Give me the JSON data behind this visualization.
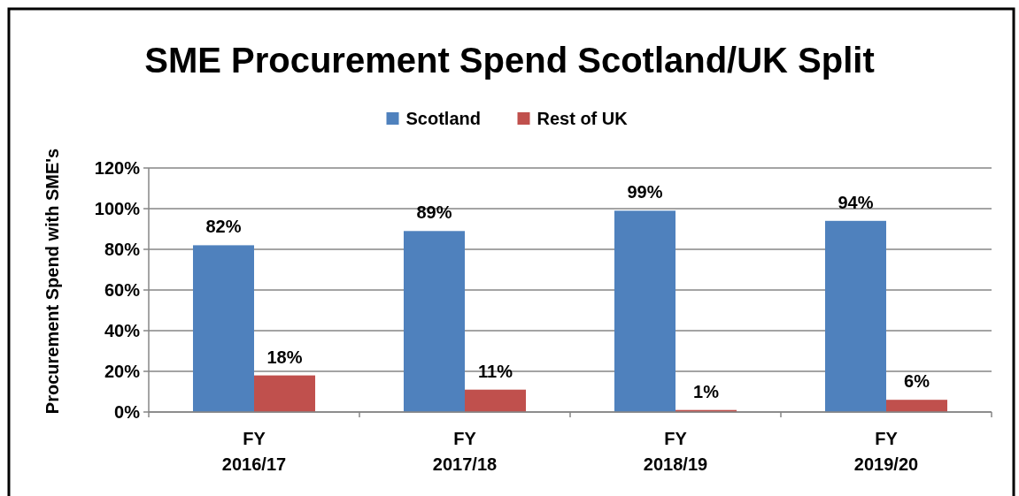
{
  "chart_data": {
    "type": "bar",
    "title": "SME Procurement Spend Scotland/UK Split",
    "ylabel": "Procurement Spend with SME's",
    "categories": [
      "FY 2016/17",
      "FY 2017/18",
      "FY 2018/19",
      "FY 2019/20"
    ],
    "series": [
      {
        "name": "Scotland",
        "color": "#4f81bd",
        "values": [
          82,
          89,
          99,
          94
        ],
        "value_labels": [
          "82%",
          "89%",
          "99%",
          "94%"
        ]
      },
      {
        "name": "Rest of UK",
        "color": "#c0504d",
        "values": [
          18,
          11,
          1,
          6
        ],
        "value_labels": [
          "18%",
          "11%",
          "1%",
          "6%"
        ]
      }
    ],
    "ylim": [
      0,
      120
    ],
    "yticks": [
      {
        "value": 0,
        "label": "0%"
      },
      {
        "value": 20,
        "label": "20%"
      },
      {
        "value": 40,
        "label": "40%"
      },
      {
        "value": 60,
        "label": "60%"
      },
      {
        "value": 80,
        "label": "80%"
      },
      {
        "value": 100,
        "label": "100%"
      },
      {
        "value": 120,
        "label": "120%"
      }
    ],
    "grid": "y",
    "legend": "top"
  }
}
